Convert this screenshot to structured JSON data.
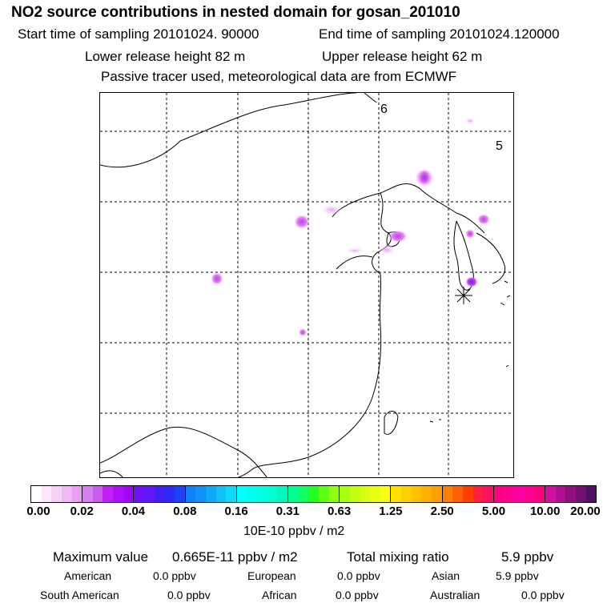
{
  "header": {
    "title": "NO2 source contributions in nested domain for gosan_201010",
    "start": "Start time of sampling 20101024. 90000",
    "end": "End time of sampling 20101024.120000",
    "lower": "Lower release height   82 m",
    "upper": "Upper release height   62 m",
    "note": "Passive tracer used, meteorological data are from ECMWF"
  },
  "map": {
    "labels": [
      "6",
      "5"
    ],
    "receptor_marker": "asterisk"
  },
  "colorbar": {
    "ticks": [
      "0.00",
      "0.02",
      "0.04",
      "0.08",
      "0.16",
      "0.31",
      "0.63",
      "1.25",
      "2.50",
      "5.00",
      "10.00",
      "20.00"
    ],
    "unit": "10E-10 ppbv / m2",
    "colors": [
      "#ffffff",
      "#fbe6fb",
      "#f6d0f6",
      "#f0b8f4",
      "#eaa0f2",
      "#d880f0",
      "#c860ee",
      "#c020f6",
      "#b010f8",
      "#a008f8",
      "#7010f6",
      "#6018f6",
      "#4020f4",
      "#3028f4",
      "#2040f6",
      "#1080f8",
      "#1090f8",
      "#10a8f8",
      "#10c0f8",
      "#10d8f8",
      "#00ffff",
      "#00fff0",
      "#00ffe0",
      "#00ffd0",
      "#00f8c0",
      "#00ff90",
      "#10ff60",
      "#20ff20",
      "#60ff10",
      "#90ff10",
      "#a8ff10",
      "#c0ff10",
      "#d8ff10",
      "#e8ff10",
      "#f8ff10",
      "#ffe000",
      "#ffd000",
      "#ffc000",
      "#ffb000",
      "#ffa000",
      "#ff8000",
      "#ff6000",
      "#ff4000",
      "#ff2040",
      "#ff1060",
      "#ff0080",
      "#ff0090",
      "#ff00a0",
      "#ff0090",
      "#ff0080",
      "#d010a0",
      "#b01090",
      "#901080",
      "#701070",
      "#501060"
    ]
  },
  "stats": {
    "max_label": "Maximum value",
    "max_value": "0.665E-11 ppbv / m2",
    "total_label": "Total mixing ratio",
    "total_value": "5.9 ppbv",
    "regions": [
      {
        "name": "American",
        "value": "0.0 ppbv"
      },
      {
        "name": "European",
        "value": "0.0 ppbv"
      },
      {
        "name": "Asian",
        "value": "5.9 ppbv"
      },
      {
        "name": "South American",
        "value": "0.0 ppbv"
      },
      {
        "name": "African",
        "value": "0.0 ppbv"
      },
      {
        "name": "Australian",
        "value": "0.0 ppbv"
      }
    ]
  }
}
